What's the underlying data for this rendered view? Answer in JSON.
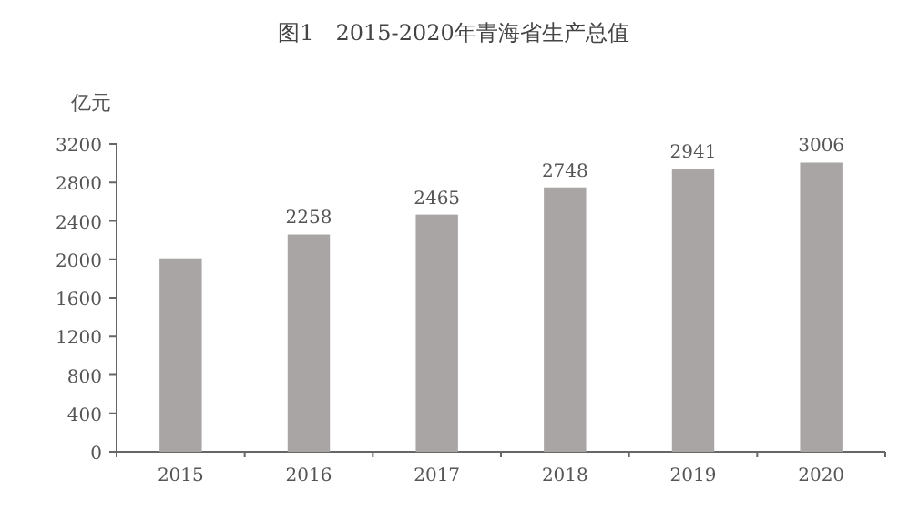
{
  "chart_data": {
    "type": "bar",
    "title": "图1　2015-2020年青海省生产总值",
    "ylabel": "亿元",
    "categories": [
      "2015",
      "2016",
      "2017",
      "2018",
      "2019",
      "2020"
    ],
    "values": [
      2010,
      2258,
      2465,
      2748,
      2941,
      3006
    ],
    "value_labels": [
      null,
      "2258",
      "2465",
      "2748",
      "2941",
      "3006"
    ],
    "color": "#a8a5a4",
    "ylim": [
      0,
      3200
    ],
    "yticks": [
      0,
      400,
      800,
      1200,
      1600,
      2000,
      2400,
      2800,
      3200
    ],
    "grid": false
  }
}
